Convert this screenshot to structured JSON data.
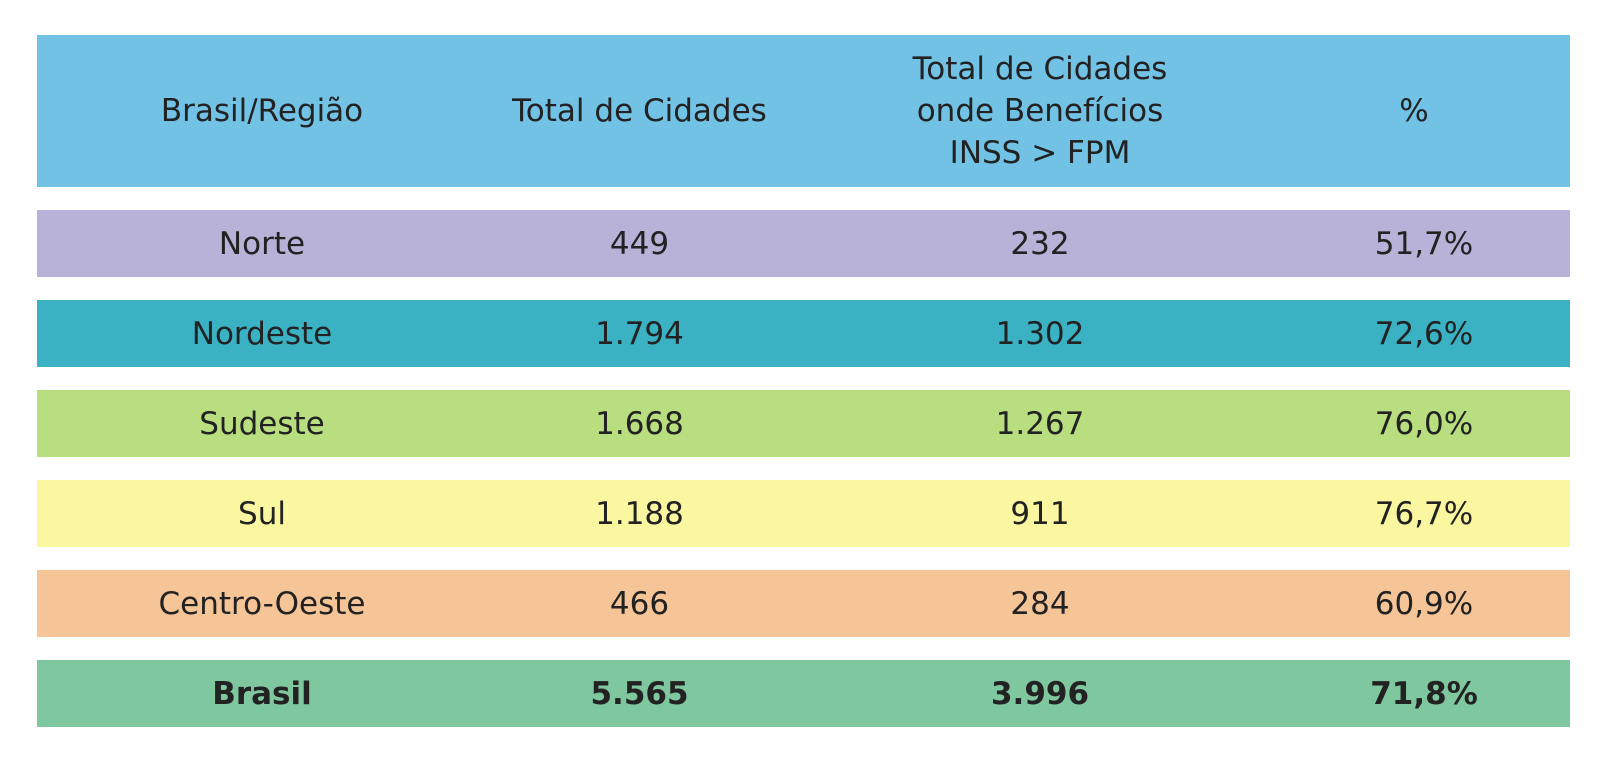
{
  "chart_data": {
    "type": "table",
    "columns": [
      "Brasil/Região",
      "Total de Cidades",
      "Total de Cidades onde Benefícios INSS > FPM",
      "%"
    ],
    "header_lines": {
      "col3": [
        "Total de Cidades",
        "onde Benefícios",
        "INSS > FPM"
      ]
    },
    "rows": [
      {
        "region": "Norte",
        "total": "449",
        "inss_gt_fpm": "232",
        "pct": "51,7%",
        "color": "#b9b2d8"
      },
      {
        "region": "Nordeste",
        "total": "1.794",
        "inss_gt_fpm": "1.302",
        "pct": "72,6%",
        "color": "#3ab2c4"
      },
      {
        "region": "Sudeste",
        "total": "1.668",
        "inss_gt_fpm": "1.267",
        "pct": "76,0%",
        "color": "#b9de80"
      },
      {
        "region": "Sul",
        "total": "1.188",
        "inss_gt_fpm": "911",
        "pct": "76,7%",
        "color": "#fbf7a1"
      },
      {
        "region": "Centro-Oeste",
        "total": "466",
        "inss_gt_fpm": "284",
        "pct": "60,9%",
        "color": "#f5c497"
      },
      {
        "region": "Brasil",
        "total": "5.565",
        "inss_gt_fpm": "3.996",
        "pct": "71,8%",
        "color": "#7ec79f",
        "bold": true
      }
    ],
    "header_color": "#72c2e5"
  }
}
